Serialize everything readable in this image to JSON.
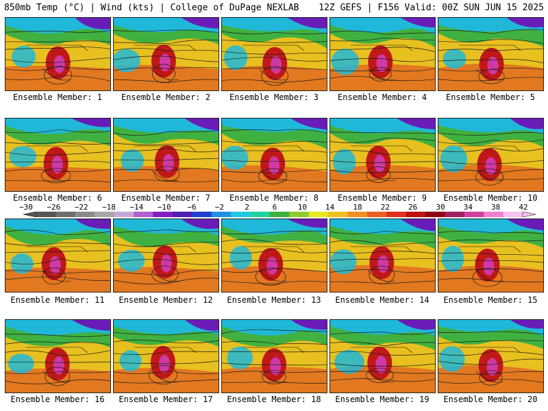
{
  "header": {
    "title_left": "850mb Temp (°C) | Wind (kts) | College of DuPage NEXLAB",
    "title_right": "12Z GEFS | F156 Valid: 00Z SUN JUN 15 2025"
  },
  "members": [
    {
      "label": "Ensemble Member: 1"
    },
    {
      "label": "Ensemble Member: 2"
    },
    {
      "label": "Ensemble Member: 3"
    },
    {
      "label": "Ensemble Member: 4"
    },
    {
      "label": "Ensemble Member: 5"
    },
    {
      "label": "Ensemble Member: 6"
    },
    {
      "label": "Ensemble Member: 7"
    },
    {
      "label": "Ensemble Member: 8"
    },
    {
      "label": "Ensemble Member: 9"
    },
    {
      "label": "Ensemble Member: 10"
    },
    {
      "label": "Ensemble Member: 11"
    },
    {
      "label": "Ensemble Member: 12"
    },
    {
      "label": "Ensemble Member: 13"
    },
    {
      "label": "Ensemble Member: 14"
    },
    {
      "label": "Ensemble Member: 15"
    },
    {
      "label": "Ensemble Member: 16"
    },
    {
      "label": "Ensemble Member: 17"
    },
    {
      "label": "Ensemble Member: 18"
    },
    {
      "label": "Ensemble Member: 19"
    },
    {
      "label": "Ensemble Member: 20"
    }
  ],
  "colorbar": {
    "labels": [
      "−30",
      "−26",
      "−22",
      "−18",
      "−14",
      "−10",
      "−6",
      "−2",
      "2",
      "6",
      "10",
      "14",
      "18",
      "22",
      "26",
      "30",
      "34",
      "38",
      "42"
    ],
    "colors": [
      "#555555",
      "#6e6e6e",
      "#8a8a8a",
      "#a8a8a8",
      "#c8a8d8",
      "#b060d0",
      "#8020c0",
      "#5020b0",
      "#2040d0",
      "#2090e0",
      "#20c8e0",
      "#20d0a0",
      "#40b040",
      "#90c830",
      "#e8e820",
      "#f0c020",
      "#f09020",
      "#e86020",
      "#e03020",
      "#c01010",
      "#900010",
      "#a02060",
      "#d040a0",
      "#f080d0",
      "#f8c0f0"
    ],
    "units": "°C"
  },
  "map_colors": {
    "cold": "#6a1cb8",
    "cool": "#20b8d8",
    "mild": "#40b040",
    "warm": "#e8c020",
    "hot": "#e06020",
    "very_hot": "#c01818",
    "extreme": "#d040c0",
    "contour": "#1a1a1a"
  }
}
